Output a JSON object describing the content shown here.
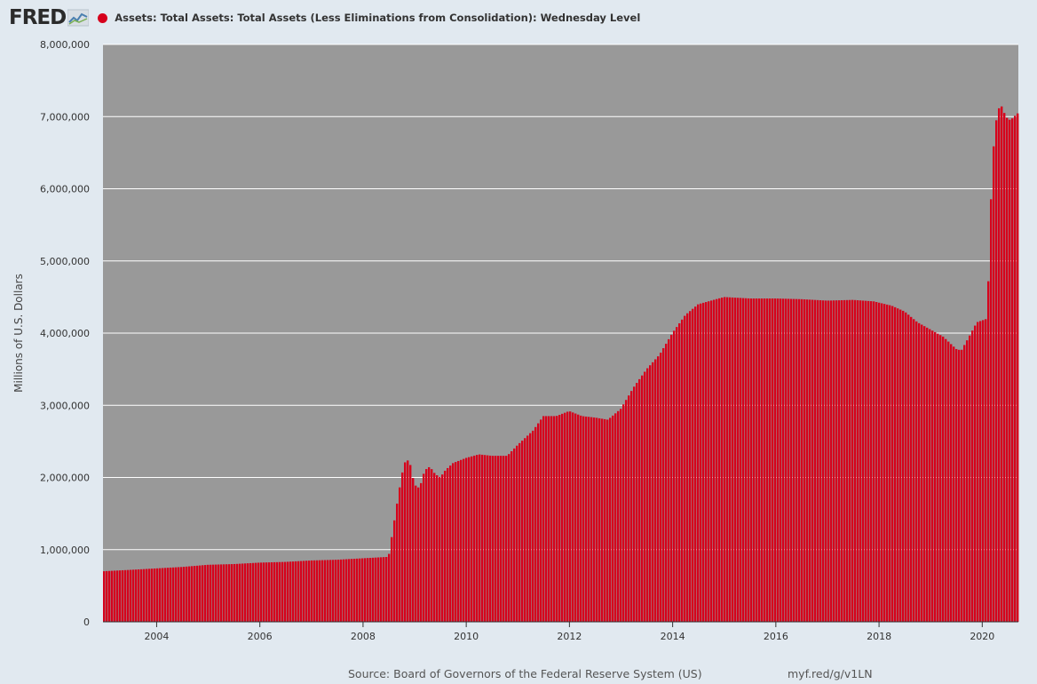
{
  "header": {
    "logo": "FRED",
    "series_title": "Assets: Total Assets: Total Assets (Less Eliminations from Consolidation): Wednesday Level",
    "series_color": "#d6001c"
  },
  "footer": {
    "source": "Source: Board of Governors of the Federal Reserve System (US)",
    "url": "myf.red/g/v1LN"
  },
  "chart_data": {
    "type": "bar",
    "title": "",
    "xlabel": "",
    "ylabel": "Millions of U.S. Dollars",
    "xlim": [
      2002.96,
      2020.7
    ],
    "ylim": [
      0,
      8000000
    ],
    "y_ticks": [
      0,
      1000000,
      2000000,
      3000000,
      4000000,
      5000000,
      6000000,
      7000000,
      8000000
    ],
    "y_tick_labels": [
      "0",
      "1,000,000",
      "2,000,000",
      "3,000,000",
      "4,000,000",
      "5,000,000",
      "6,000,000",
      "7,000,000",
      "8,000,000"
    ],
    "x_ticks": [
      2004,
      2006,
      2008,
      2010,
      2012,
      2014,
      2016,
      2018,
      2020
    ],
    "x_tick_labels": [
      "2004",
      "2006",
      "2008",
      "2010",
      "2012",
      "2014",
      "2016",
      "2018",
      "2020"
    ],
    "grid": true,
    "plot_background": "#999999",
    "bar_color": "#d6001c",
    "series": [
      {
        "x": [
          2002.96,
          2003.5,
          2004.0,
          2004.5,
          2005.0,
          2005.5,
          2006.0,
          2006.5,
          2007.0,
          2007.5,
          2008.0,
          2008.5,
          2008.7,
          2008.8,
          2008.9,
          2009.0,
          2009.1,
          2009.2,
          2009.3,
          2009.4,
          2009.5,
          2009.6,
          2009.75,
          2010.0,
          2010.25,
          2010.5,
          2010.8,
          2011.0,
          2011.3,
          2011.5,
          2011.75,
          2012.0,
          2012.25,
          2012.5,
          2012.75,
          2013.0,
          2013.25,
          2013.5,
          2013.75,
          2014.0,
          2014.25,
          2014.5,
          2014.75,
          2015.0,
          2015.5,
          2016.0,
          2016.5,
          2017.0,
          2017.5,
          2017.9,
          2018.25,
          2018.5,
          2018.75,
          2019.0,
          2019.25,
          2019.5,
          2019.6,
          2019.75,
          2019.9,
          2020.1,
          2020.2,
          2020.3,
          2020.4,
          2020.45,
          2020.55,
          2020.7
        ],
        "values": [
          700000,
          720000,
          740000,
          760000,
          790000,
          800000,
          820000,
          830000,
          850000,
          860000,
          880000,
          900000,
          1800000,
          2200000,
          2250000,
          1900000,
          1850000,
          2100000,
          2150000,
          2050000,
          2000000,
          2100000,
          2200000,
          2270000,
          2320000,
          2300000,
          2300000,
          2450000,
          2650000,
          2850000,
          2850000,
          2920000,
          2850000,
          2830000,
          2800000,
          2950000,
          3250000,
          3500000,
          3700000,
          4000000,
          4250000,
          4400000,
          4450000,
          4500000,
          4480000,
          4480000,
          4470000,
          4450000,
          4460000,
          4440000,
          4380000,
          4300000,
          4150000,
          4050000,
          3950000,
          3780000,
          3760000,
          3950000,
          4150000,
          4200000,
          6400000,
          7100000,
          7150000,
          7000000,
          6950000,
          7050000
        ]
      }
    ]
  }
}
